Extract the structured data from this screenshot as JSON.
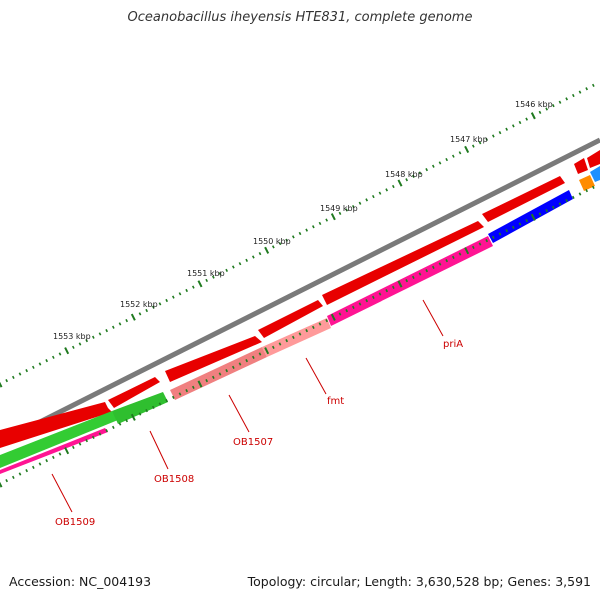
{
  "title": "Oceanobacillus iheyensis HTE831, complete genome",
  "footer": {
    "accession": "Accession: NC_004193",
    "summary": "Topology: circular; Length: 3,630,528 bp; Genes: 3,591"
  },
  "colors": {
    "backbone": "#808080",
    "forward": "#ff0000",
    "cds_green": "#33cc33",
    "cds_salmon": "#f08080",
    "cds_pink": "#ff1493",
    "cds_blue": "#0000ff",
    "cds_orange": "#ff8c00",
    "cds_cyan": "#1e90ff",
    "tick": "#1f7a1f",
    "label": "#cc0000"
  },
  "scale_labels": [
    "1546 kbp",
    "1547 kbp",
    "1548 kbp",
    "1549 kbp",
    "1550 kbp",
    "1551 kbp",
    "1552 kbp",
    "1553 kbp"
  ],
  "gene_labels": [
    "priA",
    "fmt",
    "OB1507",
    "OB1508",
    "OB1509"
  ]
}
